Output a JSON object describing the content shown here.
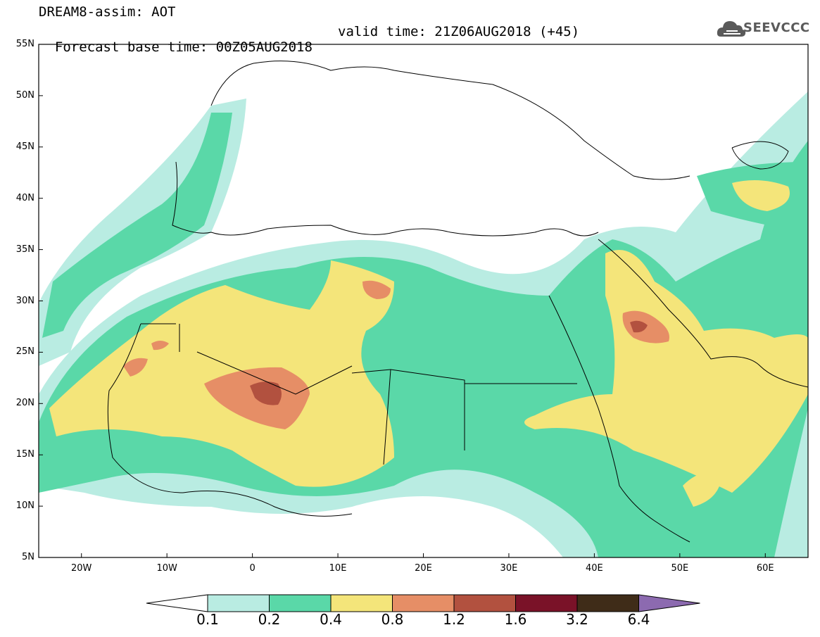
{
  "header": {
    "line1": "DREAM8-assim: AOT",
    "line2": "Forecast base time: 00Z05AUG2018",
    "valid": "valid time: 21Z06AUG2018 (+45)",
    "logo_text": "SEEVCCC"
  },
  "map": {
    "lat_labels": [
      "55N",
      "50N",
      "45N",
      "40N",
      "35N",
      "30N",
      "25N",
      "20N",
      "15N",
      "10N",
      "5N"
    ],
    "lon_labels": [
      "20W",
      "10W",
      "0",
      "10E",
      "20E",
      "30E",
      "40E",
      "50E",
      "60E"
    ],
    "lat_range": [
      5,
      55
    ],
    "lon_range": [
      -25,
      65
    ]
  },
  "legend": {
    "values": [
      "0.1",
      "0.2",
      "0.4",
      "0.8",
      "1.2",
      "1.6",
      "3.2",
      "6.4"
    ],
    "colors": [
      "#b9ece2",
      "#5ad8a8",
      "#f4e57a",
      "#e68e66",
      "#b2513f",
      "#7a1228",
      "#3f2c18",
      "#8c6ab0"
    ]
  },
  "colors": {
    "c01": "#b9ece2",
    "c02": "#5ad8a8",
    "c04": "#f4e57a",
    "c08": "#e68e66",
    "c12": "#b2513f",
    "c16": "#7a1228"
  }
}
